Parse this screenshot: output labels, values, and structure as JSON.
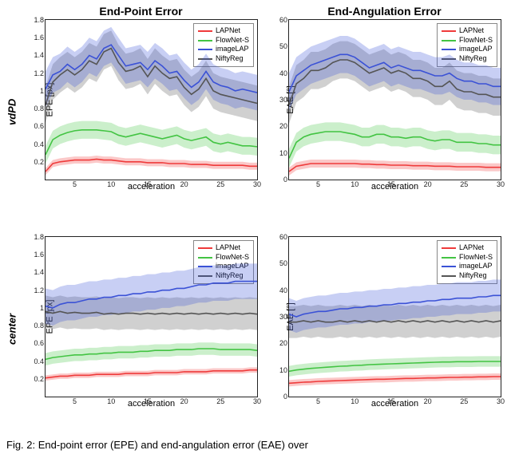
{
  "caption": "Fig. 2: End-point error (EPE) and end-angulation error (EAE) over",
  "rows": {
    "top_label": "vdPD",
    "bottom_label": "center"
  },
  "titles": {
    "left": "End-Point Error",
    "right": "End-Angulation Error"
  },
  "axis": {
    "xlabel": "acceleration",
    "ylabel_epe": "EPE [px]",
    "ylabel_eae": "EAE [°]",
    "xticks": [
      5,
      10,
      15,
      20,
      25,
      30
    ],
    "xlim": [
      1,
      30
    ],
    "epe_ylim": [
      0,
      1.8
    ],
    "epe_yticks": [
      0.2,
      0.4,
      0.6,
      0.8,
      1,
      1.2,
      1.4,
      1.6,
      1.8
    ],
    "eae_ylim": [
      0,
      60
    ],
    "eae_yticks": [
      0,
      10,
      20,
      30,
      40,
      50,
      60
    ]
  },
  "legend": [
    {
      "name": "LAPNet",
      "color": "#ef3b3b"
    },
    {
      "name": "FlowNet-S",
      "color": "#43c443"
    },
    {
      "name": "imageLAP",
      "color": "#3b52d6"
    },
    {
      "name": "NiftyReg",
      "color": "#555555"
    }
  ],
  "styling": {
    "line_width": 1.6,
    "band_opacity": 0.28,
    "axis_color": "#222222",
    "background": "#ffffff",
    "title_fontsize": 14,
    "label_fontsize": 11,
    "tick_fontsize": 9,
    "legend_fontsize": 9
  },
  "series_x": [
    1,
    2,
    3,
    4,
    5,
    6,
    7,
    8,
    9,
    10,
    11,
    12,
    13,
    14,
    15,
    16,
    17,
    18,
    19,
    20,
    21,
    22,
    23,
    24,
    25,
    26,
    27,
    28,
    29,
    30
  ],
  "panels": {
    "vdPD_EPE": {
      "LAPNet": {
        "mean": [
          0.09,
          0.18,
          0.2,
          0.21,
          0.22,
          0.22,
          0.22,
          0.23,
          0.22,
          0.22,
          0.21,
          0.2,
          0.2,
          0.2,
          0.19,
          0.19,
          0.19,
          0.18,
          0.18,
          0.18,
          0.17,
          0.17,
          0.17,
          0.16,
          0.16,
          0.16,
          0.16,
          0.16,
          0.15,
          0.15
        ],
        "band": 0.04
      },
      "FlowNet-S": {
        "mean": [
          0.28,
          0.45,
          0.5,
          0.53,
          0.55,
          0.56,
          0.56,
          0.56,
          0.55,
          0.54,
          0.5,
          0.48,
          0.5,
          0.52,
          0.5,
          0.48,
          0.46,
          0.48,
          0.5,
          0.46,
          0.44,
          0.46,
          0.48,
          0.42,
          0.4,
          0.42,
          0.4,
          0.38,
          0.38,
          0.37
        ],
        "band": 0.1
      },
      "imageLAP": {
        "mean": [
          1.02,
          1.18,
          1.22,
          1.3,
          1.24,
          1.3,
          1.4,
          1.36,
          1.48,
          1.52,
          1.4,
          1.28,
          1.3,
          1.32,
          1.24,
          1.34,
          1.28,
          1.2,
          1.22,
          1.12,
          1.04,
          1.1,
          1.22,
          1.1,
          1.06,
          1.04,
          1.0,
          1.02,
          1.0,
          0.98
        ],
        "band": 0.2
      },
      "NiftyReg": {
        "mean": [
          0.84,
          1.1,
          1.18,
          1.24,
          1.18,
          1.24,
          1.34,
          1.3,
          1.44,
          1.48,
          1.32,
          1.22,
          1.24,
          1.28,
          1.16,
          1.28,
          1.2,
          1.14,
          1.16,
          1.04,
          0.96,
          1.02,
          1.14,
          1.0,
          0.96,
          0.94,
          0.92,
          0.9,
          0.88,
          0.86
        ],
        "band": 0.2
      }
    },
    "vdPD_EAE": {
      "LAPNet": {
        "mean": [
          3.0,
          5.0,
          5.5,
          6.0,
          6.0,
          6.0,
          6.0,
          6.0,
          6.0,
          6.0,
          5.8,
          5.8,
          5.6,
          5.6,
          5.4,
          5.4,
          5.4,
          5.2,
          5.2,
          5.2,
          5.0,
          5.0,
          5.0,
          4.8,
          4.8,
          4.8,
          4.8,
          4.6,
          4.6,
          4.6
        ],
        "band": 1.5
      },
      "FlowNet-S": {
        "mean": [
          8,
          14,
          16,
          17,
          17.5,
          18,
          18,
          18,
          17.5,
          17,
          16,
          16,
          17,
          17,
          16,
          16,
          15.5,
          16,
          16,
          15,
          14.5,
          15,
          15,
          14,
          14,
          14,
          13.5,
          13.5,
          13,
          13
        ],
        "band": 3.5
      },
      "imageLAP": {
        "mean": [
          33,
          39,
          41,
          43,
          44,
          45,
          46,
          47,
          47,
          46,
          44,
          42,
          43,
          44,
          42,
          43,
          42,
          41,
          41,
          40,
          39,
          39,
          40,
          38,
          37,
          37,
          36,
          36,
          35,
          35
        ],
        "band": 7
      },
      "NiftyReg": {
        "mean": [
          28,
          36,
          38,
          41,
          41,
          42,
          44,
          45,
          45,
          44,
          42,
          40,
          41,
          42,
          40,
          41,
          40,
          38,
          38,
          37,
          35,
          35,
          37,
          34,
          33,
          33,
          32,
          32,
          31,
          31
        ],
        "band": 7
      }
    },
    "center_EPE": {
      "LAPNet": {
        "mean": [
          0.21,
          0.22,
          0.23,
          0.23,
          0.24,
          0.24,
          0.24,
          0.25,
          0.25,
          0.25,
          0.25,
          0.26,
          0.26,
          0.26,
          0.26,
          0.27,
          0.27,
          0.27,
          0.27,
          0.28,
          0.28,
          0.28,
          0.28,
          0.29,
          0.29,
          0.29,
          0.29,
          0.29,
          0.3,
          0.3
        ],
        "band": 0.03
      },
      "FlowNet-S": {
        "mean": [
          0.42,
          0.44,
          0.45,
          0.46,
          0.47,
          0.47,
          0.48,
          0.48,
          0.49,
          0.49,
          0.5,
          0.5,
          0.5,
          0.51,
          0.51,
          0.52,
          0.52,
          0.52,
          0.53,
          0.53,
          0.53,
          0.54,
          0.54,
          0.54,
          0.53,
          0.53,
          0.53,
          0.53,
          0.53,
          0.52
        ],
        "band": 0.07
      },
      "imageLAP": {
        "mean": [
          1.02,
          1.0,
          1.04,
          1.06,
          1.06,
          1.08,
          1.1,
          1.1,
          1.12,
          1.12,
          1.14,
          1.14,
          1.16,
          1.16,
          1.18,
          1.18,
          1.2,
          1.2,
          1.22,
          1.22,
          1.24,
          1.26,
          1.26,
          1.28,
          1.28,
          1.28,
          1.3,
          1.3,
          1.3,
          1.3
        ],
        "band": 0.2
      },
      "NiftyReg": {
        "mean": [
          0.96,
          0.94,
          0.96,
          0.94,
          0.95,
          0.94,
          0.94,
          0.95,
          0.93,
          0.94,
          0.93,
          0.94,
          0.94,
          0.93,
          0.94,
          0.93,
          0.94,
          0.93,
          0.94,
          0.93,
          0.94,
          0.93,
          0.94,
          0.93,
          0.94,
          0.93,
          0.94,
          0.93,
          0.94,
          0.93
        ],
        "band": 0.18
      }
    },
    "center_EAE": {
      "LAPNet": {
        "mean": [
          5.0,
          5.2,
          5.4,
          5.5,
          5.7,
          5.8,
          5.9,
          6.0,
          6.1,
          6.2,
          6.3,
          6.4,
          6.5,
          6.5,
          6.6,
          6.7,
          6.8,
          6.8,
          6.9,
          7.0,
          7.0,
          7.1,
          7.2,
          7.2,
          7.3,
          7.3,
          7.4,
          7.4,
          7.5,
          7.5
        ],
        "band": 1.2
      },
      "FlowNet-S": {
        "mean": [
          9.5,
          10,
          10.3,
          10.6,
          10.8,
          11,
          11.2,
          11.4,
          11.5,
          11.7,
          11.8,
          12,
          12.1,
          12.2,
          12.3,
          12.4,
          12.5,
          12.6,
          12.7,
          12.8,
          12.9,
          13,
          13,
          13.1,
          13.1,
          13.1,
          13.2,
          13.2,
          13.2,
          13.2
        ],
        "band": 2.0
      },
      "imageLAP": {
        "mean": [
          31,
          30,
          31,
          31.5,
          32,
          32,
          32.5,
          33,
          33,
          33.5,
          33.5,
          34,
          34,
          34.5,
          34.5,
          35,
          35,
          35.5,
          35.5,
          36,
          36,
          36.5,
          36.5,
          37,
          37,
          37,
          37.5,
          37.5,
          38,
          38
        ],
        "band": 6
      },
      "NiftyReg": {
        "mean": [
          28,
          28,
          28.5,
          28,
          28.5,
          28,
          28,
          28.5,
          28,
          28.5,
          28,
          28.5,
          28,
          28.5,
          28,
          28.5,
          28,
          28.5,
          28,
          28.5,
          28,
          28.5,
          28,
          28.5,
          28,
          28.5,
          28,
          28.5,
          28,
          28.5
        ],
        "band": 6
      }
    }
  }
}
